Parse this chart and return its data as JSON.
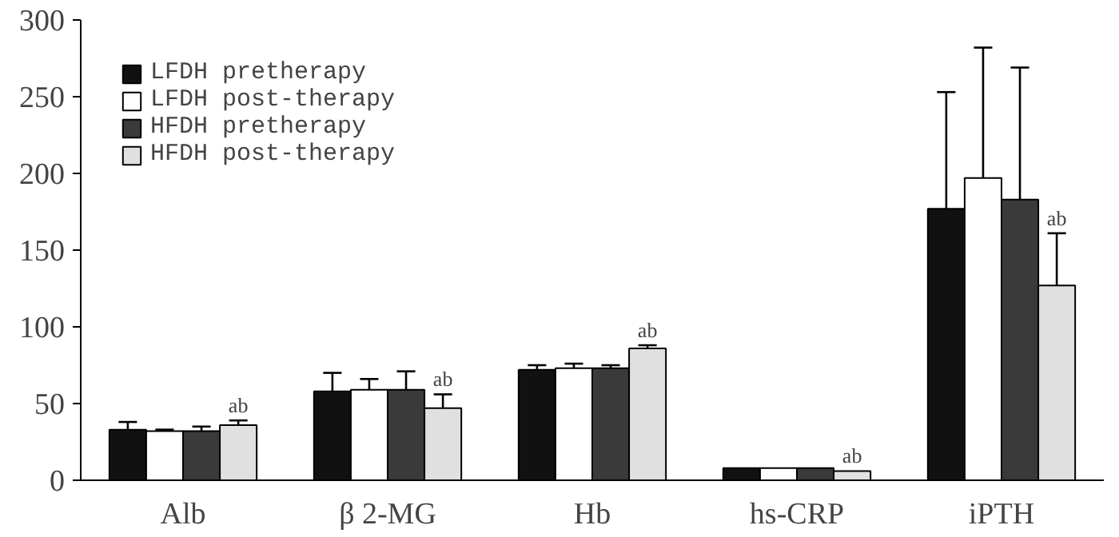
{
  "chart_data": {
    "type": "bar",
    "categories": [
      "Alb",
      "β 2-MG",
      "Hb",
      "hs-CRP",
      "iPTH"
    ],
    "series": [
      {
        "name": "LFDH pretherapy",
        "color": "#111111",
        "values": [
          33,
          58,
          72,
          8,
          177
        ],
        "errors": [
          [
            33,
            38
          ],
          [
            58,
            70
          ],
          [
            72,
            75
          ],
          null,
          [
            177,
            253
          ]
        ]
      },
      {
        "name": "LFDH post-therapy",
        "color": "#ffffff",
        "values": [
          32,
          59,
          73,
          8,
          197
        ],
        "errors": [
          [
            32,
            33
          ],
          [
            59,
            66
          ],
          [
            73,
            76
          ],
          null,
          [
            197,
            282
          ]
        ]
      },
      {
        "name": "HFDH pretherapy",
        "color": "#3a3a3a",
        "values": [
          32,
          59,
          73,
          8,
          183
        ],
        "errors": [
          [
            32,
            35
          ],
          [
            59,
            71
          ],
          [
            73,
            75
          ],
          null,
          [
            183,
            269
          ]
        ]
      },
      {
        "name": "HFDH post-therapy",
        "color": "#e0e0e0",
        "values": [
          36,
          47,
          86,
          6,
          127
        ],
        "errors": [
          [
            36,
            39
          ],
          [
            47,
            56
          ],
          [
            86,
            88
          ],
          null,
          [
            127,
            161
          ]
        ]
      }
    ],
    "annotations": [
      "ab",
      "ab",
      "ab",
      "ab",
      "ab"
    ],
    "ylim": [
      0,
      300
    ],
    "yticks": [
      0,
      50,
      100,
      150,
      200,
      250,
      300
    ],
    "grid": false,
    "legend": "top left"
  }
}
